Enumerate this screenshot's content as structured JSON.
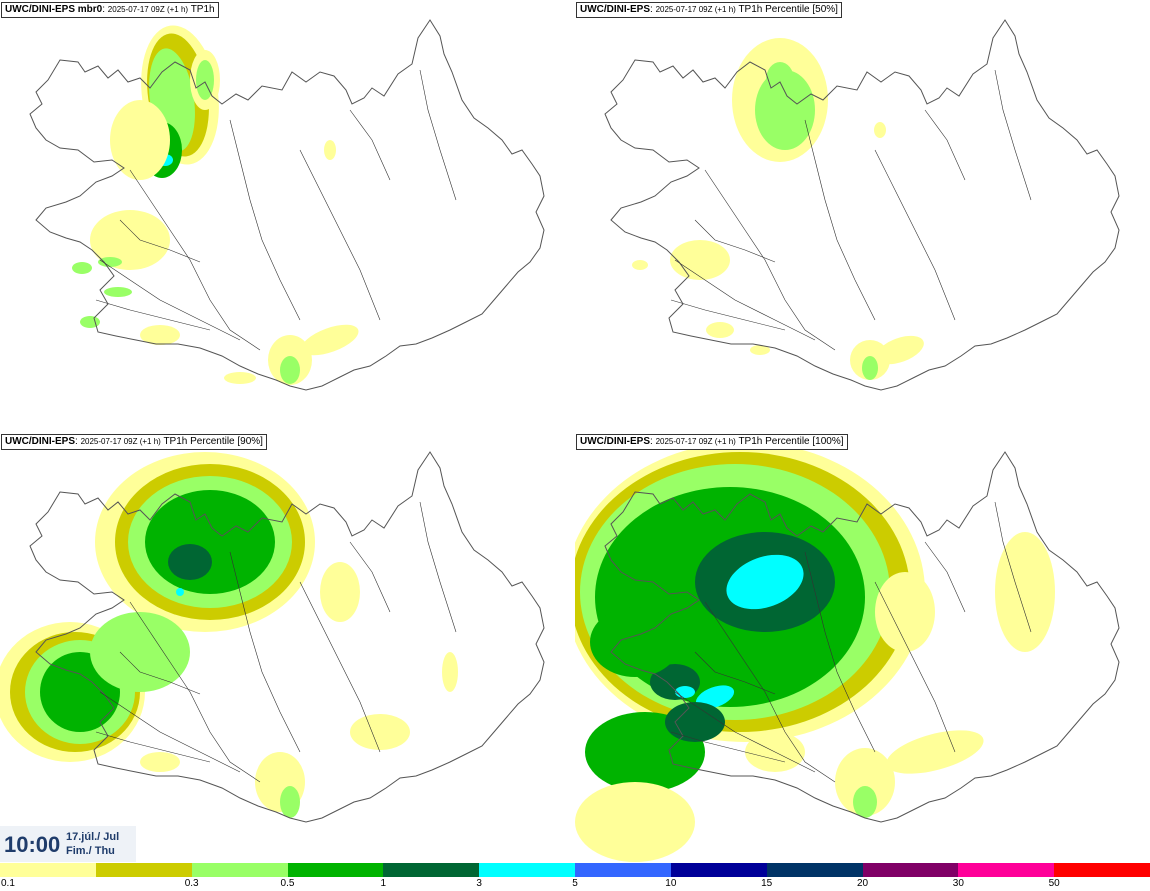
{
  "panels": [
    {
      "model": "UWC/DINI-EPS mbr0",
      "run": "2025-07-17 09Z (+1 h)",
      "field": "TP1h"
    },
    {
      "model": "UWC/DINI-EPS",
      "run": "2025-07-17 09Z (+1 h)",
      "field": "TP1h Percentile [50%]"
    },
    {
      "model": "UWC/DINI-EPS",
      "run": "2025-07-17 09Z (+1 h)",
      "field": "TP1h Percentile [90%]"
    },
    {
      "model": "UWC/DINI-EPS",
      "run": "2025-07-17 09Z (+1 h)",
      "field": "TP1h Percentile [100%]"
    }
  ],
  "valid_time": {
    "hour": "10:00",
    "date_line1": "17.júl./ Jul",
    "date_line2": "Fim./ Thu"
  },
  "legend": {
    "colors": [
      "#ffff99",
      "#cccc00",
      "#99ff66",
      "#00b300",
      "#006633",
      "#00ffff",
      "#3366ff",
      "#000099",
      "#003366",
      "#800066",
      "#ff0099",
      "#ff0000"
    ],
    "ticks": [
      "0.1",
      "0.3",
      "0.5",
      "1",
      "3",
      "5",
      "10",
      "15",
      "20",
      "30",
      "50"
    ]
  },
  "colors": {
    "outline": "#555555",
    "rivers": "#333333"
  }
}
